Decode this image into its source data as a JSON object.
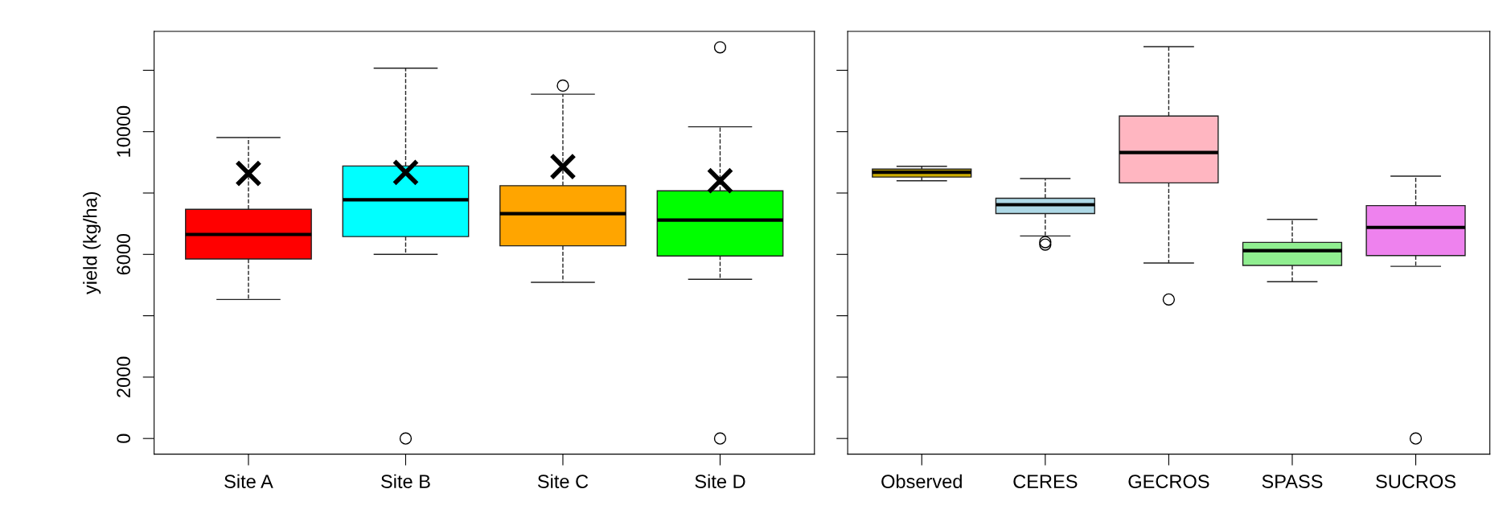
{
  "chart_data": [
    {
      "type": "box",
      "ylabel": "yield (kg/ha)",
      "categories": [
        "Site A",
        "Site B",
        "Site C",
        "Site D"
      ],
      "colors": [
        "#ff0000",
        "#00ffff",
        "#ffa500",
        "#00ff00"
      ],
      "boxes": [
        {
          "low": 4530,
          "q1": 5850,
          "median": 6650,
          "q3": 7470,
          "high": 9810,
          "mean": 8640
        },
        {
          "low": 6000,
          "q1": 6580,
          "median": 7780,
          "q3": 8880,
          "high": 12070,
          "mean": 8670,
          "outliers": [
            0
          ]
        },
        {
          "low": 5090,
          "q1": 6280,
          "median": 7330,
          "q3": 8240,
          "high": 11220,
          "mean": 8860,
          "outliers": [
            11500
          ]
        },
        {
          "low": 5190,
          "q1": 5950,
          "median": 7120,
          "q3": 8070,
          "high": 10160,
          "mean": 8400,
          "outliers": [
            0,
            12750
          ]
        }
      ],
      "ylim": [
        -510,
        13270
      ],
      "yticks": [
        0,
        2000,
        {
          "value": 4000,
          "label": null
        },
        6000,
        {
          "value": 8000,
          "label": null
        },
        10000,
        {
          "value": 12000,
          "label": null
        }
      ]
    },
    {
      "type": "box",
      "categories": [
        "Observed",
        "CERES",
        "GECROS",
        "SPASS",
        "SUCROS"
      ],
      "colors": [
        "#cdad00",
        "#add8e6",
        "#ffb6c1",
        "#90ee90",
        "#ee82ee"
      ],
      "boxes": [
        {
          "low": 8400,
          "q1": 8520,
          "median": 8680,
          "q3": 8780,
          "high": 8870
        },
        {
          "low": 6600,
          "q1": 7330,
          "median": 7620,
          "q3": 7830,
          "high": 8470,
          "outliers": [
            6400,
            6320
          ]
        },
        {
          "low": 5720,
          "q1": 8330,
          "median": 9320,
          "q3": 10510,
          "high": 12770,
          "outliers": [
            4530
          ]
        },
        {
          "low": 5110,
          "q1": 5640,
          "median": 6120,
          "q3": 6390,
          "high": 7140
        },
        {
          "low": 5610,
          "q1": 5960,
          "median": 6880,
          "q3": 7590,
          "high": 8550,
          "outliers": [
            0
          ]
        }
      ],
      "ylim": [
        -510,
        13270
      ],
      "yticks": [
        {
          "value": 0,
          "label": null
        },
        {
          "value": 2000,
          "label": null
        },
        {
          "value": 4000,
          "label": null
        },
        {
          "value": 6000,
          "label": null
        },
        {
          "value": 8000,
          "label": null
        },
        {
          "value": 10000,
          "label": null
        },
        {
          "value": 12000,
          "label": null
        }
      ],
      "tick_labels": "x"
    }
  ]
}
